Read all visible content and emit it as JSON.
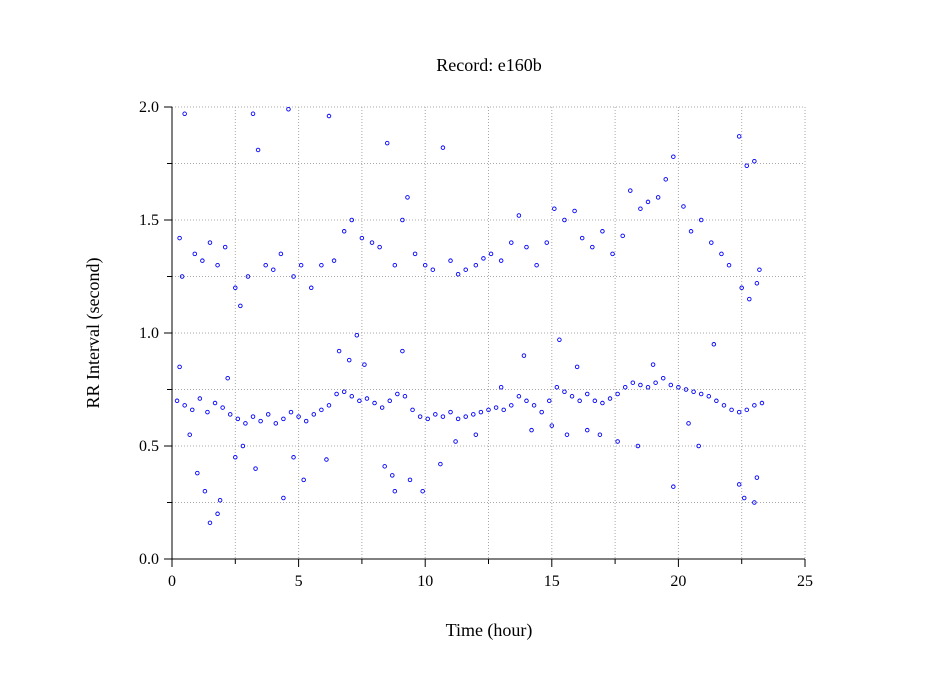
{
  "chart_data": {
    "type": "scatter",
    "title": "Record:  e160b",
    "xlabel": "Time (hour)",
    "ylabel": "RR Interval (second)",
    "xlim": [
      0,
      25
    ],
    "ylim": [
      0.0,
      2.0
    ],
    "x_ticks": [
      "0",
      "5",
      "10",
      "15",
      "20",
      "25"
    ],
    "y_ticks": [
      "0.0",
      "0.5",
      "1.0",
      "1.5",
      "2.0"
    ],
    "grid": true,
    "marker_color": "#0000ff",
    "series": [
      {
        "marker": "open-circle",
        "points": [
          [
            0.2,
            0.7
          ],
          [
            0.5,
            0.68
          ],
          [
            0.8,
            0.66
          ],
          [
            1.1,
            0.71
          ],
          [
            1.4,
            0.65
          ],
          [
            1.7,
            0.69
          ],
          [
            2.0,
            0.67
          ],
          [
            2.3,
            0.64
          ],
          [
            2.6,
            0.62
          ],
          [
            2.9,
            0.6
          ],
          [
            3.2,
            0.63
          ],
          [
            3.5,
            0.61
          ],
          [
            3.8,
            0.64
          ],
          [
            4.1,
            0.6
          ],
          [
            4.4,
            0.62
          ],
          [
            4.7,
            0.65
          ],
          [
            5.0,
            0.63
          ],
          [
            5.3,
            0.61
          ],
          [
            5.6,
            0.64
          ],
          [
            5.9,
            0.66
          ],
          [
            6.2,
            0.68
          ],
          [
            6.5,
            0.73
          ],
          [
            6.8,
            0.74
          ],
          [
            7.1,
            0.72
          ],
          [
            7.4,
            0.7
          ],
          [
            7.7,
            0.71
          ],
          [
            8.0,
            0.69
          ],
          [
            8.3,
            0.67
          ],
          [
            8.6,
            0.7
          ],
          [
            8.9,
            0.73
          ],
          [
            9.2,
            0.72
          ],
          [
            9.5,
            0.66
          ],
          [
            9.8,
            0.63
          ],
          [
            10.1,
            0.62
          ],
          [
            10.4,
            0.64
          ],
          [
            10.7,
            0.63
          ],
          [
            11.0,
            0.65
          ],
          [
            11.3,
            0.62
          ],
          [
            11.6,
            0.63
          ],
          [
            11.9,
            0.64
          ],
          [
            12.2,
            0.65
          ],
          [
            12.5,
            0.66
          ],
          [
            12.8,
            0.67
          ],
          [
            13.1,
            0.66
          ],
          [
            13.4,
            0.68
          ],
          [
            13.7,
            0.72
          ],
          [
            14.0,
            0.7
          ],
          [
            14.3,
            0.68
          ],
          [
            14.6,
            0.65
          ],
          [
            14.9,
            0.7
          ],
          [
            15.2,
            0.76
          ],
          [
            15.5,
            0.74
          ],
          [
            15.8,
            0.72
          ],
          [
            16.1,
            0.7
          ],
          [
            16.4,
            0.73
          ],
          [
            16.7,
            0.7
          ],
          [
            17.0,
            0.69
          ],
          [
            17.3,
            0.71
          ],
          [
            17.6,
            0.73
          ],
          [
            17.9,
            0.76
          ],
          [
            18.2,
            0.78
          ],
          [
            18.5,
            0.77
          ],
          [
            18.8,
            0.76
          ],
          [
            19.1,
            0.78
          ],
          [
            19.4,
            0.8
          ],
          [
            19.7,
            0.77
          ],
          [
            20.0,
            0.76
          ],
          [
            20.3,
            0.75
          ],
          [
            20.6,
            0.74
          ],
          [
            20.9,
            0.73
          ],
          [
            21.2,
            0.72
          ],
          [
            21.5,
            0.7
          ],
          [
            21.8,
            0.68
          ],
          [
            22.1,
            0.66
          ],
          [
            22.4,
            0.65
          ],
          [
            22.7,
            0.66
          ],
          [
            23.0,
            0.68
          ],
          [
            23.3,
            0.69
          ],
          [
            0.5,
            1.97
          ],
          [
            0.3,
            1.42
          ],
          [
            0.4,
            1.25
          ],
          [
            0.9,
            1.35
          ],
          [
            1.2,
            1.32
          ],
          [
            1.5,
            1.4
          ],
          [
            1.8,
            1.3
          ],
          [
            2.1,
            1.38
          ],
          [
            2.5,
            1.2
          ],
          [
            2.7,
            1.12
          ],
          [
            3.0,
            1.25
          ],
          [
            3.2,
            1.97
          ],
          [
            3.4,
            1.81
          ],
          [
            3.7,
            1.3
          ],
          [
            4.0,
            1.28
          ],
          [
            4.3,
            1.35
          ],
          [
            4.6,
            1.99
          ],
          [
            4.8,
            1.25
          ],
          [
            5.1,
            1.3
          ],
          [
            5.5,
            1.2
          ],
          [
            5.9,
            1.3
          ],
          [
            6.2,
            1.96
          ],
          [
            6.4,
            1.32
          ],
          [
            6.8,
            1.45
          ],
          [
            7.1,
            1.5
          ],
          [
            7.5,
            1.42
          ],
          [
            7.9,
            1.4
          ],
          [
            8.2,
            1.38
          ],
          [
            8.5,
            1.84
          ],
          [
            8.8,
            1.3
          ],
          [
            9.1,
            1.5
          ],
          [
            9.3,
            1.6
          ],
          [
            9.6,
            1.35
          ],
          [
            10.0,
            1.3
          ],
          [
            10.3,
            1.28
          ],
          [
            10.7,
            1.82
          ],
          [
            11.0,
            1.32
          ],
          [
            11.3,
            1.26
          ],
          [
            11.6,
            1.28
          ],
          [
            12.0,
            1.3
          ],
          [
            12.3,
            1.33
          ],
          [
            12.6,
            1.35
          ],
          [
            13.0,
            1.32
          ],
          [
            13.4,
            1.4
          ],
          [
            13.7,
            1.52
          ],
          [
            14.0,
            1.38
          ],
          [
            14.4,
            1.3
          ],
          [
            14.8,
            1.4
          ],
          [
            15.1,
            1.55
          ],
          [
            15.5,
            1.5
          ],
          [
            15.9,
            1.54
          ],
          [
            16.2,
            1.42
          ],
          [
            16.6,
            1.38
          ],
          [
            17.0,
            1.45
          ],
          [
            17.4,
            1.35
          ],
          [
            17.8,
            1.43
          ],
          [
            18.1,
            1.63
          ],
          [
            18.5,
            1.55
          ],
          [
            18.8,
            1.58
          ],
          [
            19.2,
            1.6
          ],
          [
            19.5,
            1.68
          ],
          [
            19.8,
            1.78
          ],
          [
            20.2,
            1.56
          ],
          [
            20.5,
            1.45
          ],
          [
            20.9,
            1.5
          ],
          [
            21.3,
            1.4
          ],
          [
            21.7,
            1.35
          ],
          [
            22.0,
            1.3
          ],
          [
            22.4,
            1.87
          ],
          [
            22.7,
            1.74
          ],
          [
            23.0,
            1.76
          ],
          [
            23.2,
            1.28
          ],
          [
            22.5,
            1.2
          ],
          [
            22.8,
            1.15
          ],
          [
            23.1,
            1.22
          ],
          [
            0.3,
            0.85
          ],
          [
            0.7,
            0.55
          ],
          [
            1.0,
            0.38
          ],
          [
            1.3,
            0.3
          ],
          [
            1.5,
            0.16
          ],
          [
            1.8,
            0.2
          ],
          [
            1.9,
            0.26
          ],
          [
            2.2,
            0.8
          ],
          [
            2.5,
            0.45
          ],
          [
            2.8,
            0.5
          ],
          [
            3.3,
            0.4
          ],
          [
            4.4,
            0.27
          ],
          [
            4.8,
            0.45
          ],
          [
            5.2,
            0.35
          ],
          [
            6.1,
            0.44
          ],
          [
            6.6,
            0.92
          ],
          [
            7.0,
            0.88
          ],
          [
            7.3,
            0.99
          ],
          [
            7.6,
            0.86
          ],
          [
            8.4,
            0.41
          ],
          [
            8.7,
            0.37
          ],
          [
            8.8,
            0.3
          ],
          [
            9.1,
            0.92
          ],
          [
            9.4,
            0.35
          ],
          [
            9.9,
            0.3
          ],
          [
            10.6,
            0.42
          ],
          [
            11.2,
            0.52
          ],
          [
            12.0,
            0.55
          ],
          [
            13.0,
            0.76
          ],
          [
            13.9,
            0.9
          ],
          [
            14.2,
            0.57
          ],
          [
            15.0,
            0.59
          ],
          [
            15.3,
            0.97
          ],
          [
            15.6,
            0.55
          ],
          [
            16.0,
            0.85
          ],
          [
            16.4,
            0.57
          ],
          [
            16.9,
            0.55
          ],
          [
            17.6,
            0.52
          ],
          [
            18.4,
            0.5
          ],
          [
            19.0,
            0.86
          ],
          [
            19.8,
            0.32
          ],
          [
            20.4,
            0.6
          ],
          [
            20.8,
            0.5
          ],
          [
            21.4,
            0.95
          ],
          [
            22.4,
            0.33
          ],
          [
            22.6,
            0.27
          ],
          [
            23.0,
            0.25
          ],
          [
            23.1,
            0.36
          ]
        ]
      }
    ]
  }
}
